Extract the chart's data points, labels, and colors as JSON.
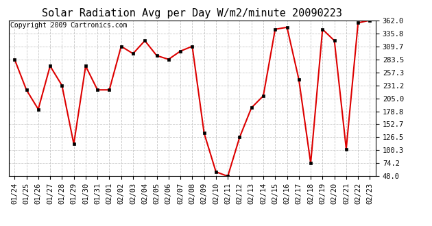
{
  "title": "Solar Radiation Avg per Day W/m2/minute 20090223",
  "copyright": "Copyright 2009 Cartronics.com",
  "labels": [
    "01/24",
    "01/25",
    "01/26",
    "01/27",
    "01/28",
    "01/29",
    "01/30",
    "01/31",
    "02/01",
    "02/02",
    "02/03",
    "02/04",
    "02/05",
    "02/06",
    "02/07",
    "02/08",
    "02/09",
    "02/10",
    "02/11",
    "02/12",
    "02/13",
    "02/14",
    "02/15",
    "02/16",
    "02/17",
    "02/18",
    "02/19",
    "02/20",
    "02/21",
    "02/22",
    "02/23"
  ],
  "values": [
    283.5,
    222.0,
    183.0,
    270.0,
    231.0,
    113.0,
    270.0,
    222.0,
    222.0,
    309.7,
    295.0,
    321.0,
    291.0,
    283.5,
    300.0,
    309.7,
    135.0,
    57.0,
    48.0,
    126.5,
    186.0,
    210.0,
    344.0,
    348.0,
    243.0,
    74.2,
    344.0,
    321.0,
    103.0,
    357.0,
    362.0
  ],
  "y_ticks": [
    48.0,
    74.2,
    100.3,
    126.5,
    152.7,
    178.8,
    205.0,
    231.2,
    257.3,
    283.5,
    309.7,
    335.8,
    362.0
  ],
  "ylim": [
    48.0,
    362.0
  ],
  "line_color": "#dd0000",
  "marker_color": "#000000",
  "bg_color": "#ffffff",
  "grid_color": "#c0c0c0",
  "title_fontsize": 11,
  "copyright_fontsize": 7,
  "tick_fontsize": 7.5
}
